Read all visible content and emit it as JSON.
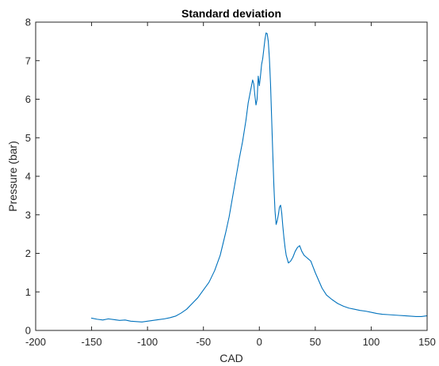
{
  "chart_data": {
    "type": "line",
    "title": "Standard deviation",
    "xlabel": "CAD",
    "ylabel": "Pressure (bar)",
    "xlim": [
      -200,
      150
    ],
    "ylim": [
      0,
      8
    ],
    "xticks": [
      -200,
      -150,
      -100,
      -50,
      0,
      50,
      100,
      150
    ],
    "yticks": [
      0,
      1,
      2,
      3,
      4,
      5,
      6,
      7,
      8
    ],
    "grid": false,
    "box": true,
    "line_color": "#0072BD",
    "series": [
      {
        "x": [
          -150,
          -145,
          -140,
          -135,
          -130,
          -125,
          -120,
          -115,
          -110,
          -105,
          -100,
          -95,
          -90,
          -85,
          -80,
          -75,
          -70,
          -65,
          -60,
          -55,
          -50,
          -45,
          -40,
          -35,
          -30,
          -27,
          -24,
          -21,
          -18,
          -15,
          -12,
          -10,
          -8,
          -6,
          -5,
          -4,
          -3,
          -2,
          -1,
          0,
          1,
          2,
          3,
          4,
          5,
          6,
          7,
          8,
          9,
          10,
          11,
          12,
          13,
          14,
          15,
          16,
          17,
          18,
          19,
          20,
          21,
          22,
          23,
          24,
          25,
          26,
          28,
          30,
          32,
          34,
          36,
          38,
          40,
          42,
          44,
          46,
          48,
          50,
          53,
          56,
          60,
          65,
          70,
          75,
          80,
          85,
          90,
          95,
          100,
          105,
          110,
          115,
          120,
          125,
          130,
          135,
          140,
          145,
          150
        ],
        "values": [
          0.32,
          0.29,
          0.27,
          0.3,
          0.28,
          0.26,
          0.27,
          0.24,
          0.23,
          0.22,
          0.24,
          0.26,
          0.28,
          0.3,
          0.33,
          0.37,
          0.45,
          0.55,
          0.7,
          0.85,
          1.05,
          1.25,
          1.55,
          1.95,
          2.55,
          2.95,
          3.45,
          3.95,
          4.45,
          4.9,
          5.45,
          5.9,
          6.2,
          6.5,
          6.4,
          6.1,
          5.85,
          6.0,
          6.6,
          6.35,
          6.6,
          6.9,
          7.05,
          7.3,
          7.55,
          7.72,
          7.7,
          7.5,
          7.05,
          6.4,
          5.5,
          4.6,
          3.75,
          3.1,
          2.75,
          2.85,
          3.0,
          3.2,
          3.25,
          3.05,
          2.7,
          2.4,
          2.15,
          1.95,
          1.85,
          1.75,
          1.8,
          1.9,
          2.05,
          2.15,
          2.2,
          2.05,
          1.95,
          1.9,
          1.85,
          1.8,
          1.65,
          1.5,
          1.3,
          1.1,
          0.92,
          0.8,
          0.7,
          0.63,
          0.58,
          0.55,
          0.52,
          0.5,
          0.47,
          0.44,
          0.42,
          0.41,
          0.4,
          0.39,
          0.38,
          0.37,
          0.36,
          0.36,
          0.38
        ]
      }
    ]
  }
}
